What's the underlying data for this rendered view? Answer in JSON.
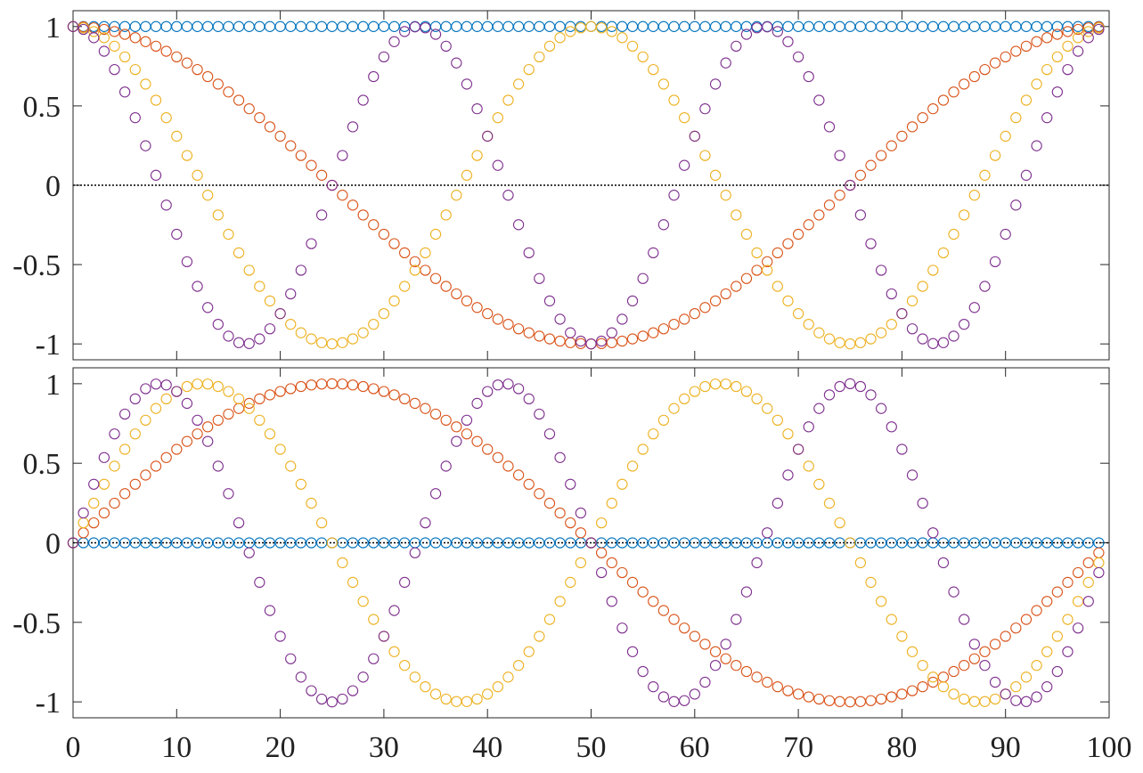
{
  "chart_data": [
    {
      "type": "scatter",
      "title": "",
      "xlabel": "",
      "ylabel": "",
      "xlim": [
        0,
        100
      ],
      "ylim": [
        -1.1,
        1.1
      ],
      "x_ticks": [
        "0",
        "10",
        "20",
        "30",
        "40",
        "50",
        "60",
        "70",
        "80",
        "90",
        "100"
      ],
      "x_tick_labels_shown": false,
      "y_ticks": [
        "-1",
        "-0.5",
        "0",
        "0.5",
        "1"
      ],
      "reference_line": {
        "y": 0,
        "style": "dotted"
      },
      "grid": false,
      "legend": "none",
      "x": "n = 0, 1, …, 99",
      "series": [
        {
          "function": "cos(2π·0·n/100)",
          "color": "#0072BD",
          "marker": "open-circle",
          "values": "1 for all n"
        },
        {
          "function": "cos(2π·1·n/100)",
          "color": "#D95319",
          "marker": "open-circle",
          "values_sample": {
            "0": 1,
            "25": 0,
            "50": -1,
            "75": 0
          }
        },
        {
          "function": "cos(2π·2·n/100)",
          "color": "#EDB120",
          "marker": "open-circle",
          "values_sample": {
            "0": 1,
            "25": -1,
            "50": 1,
            "75": -1
          }
        },
        {
          "function": "cos(2π·3·n/100)",
          "color": "#7E2F8E",
          "marker": "open-circle",
          "values_sample": {
            "0": 1,
            "17": -1,
            "33": 1,
            "50": -1,
            "67": 1,
            "83": -1
          }
        }
      ]
    },
    {
      "type": "scatter",
      "title": "",
      "xlabel": "",
      "ylabel": "",
      "xlim": [
        0,
        100
      ],
      "ylim": [
        -1.1,
        1.1
      ],
      "x_ticks": [
        "0",
        "10",
        "20",
        "30",
        "40",
        "50",
        "60",
        "70",
        "80",
        "90",
        "100"
      ],
      "x_tick_labels_shown": true,
      "y_ticks": [
        "-1",
        "-0.5",
        "0",
        "0.5",
        "1"
      ],
      "reference_line": {
        "y": 0,
        "style": "dotted"
      },
      "grid": false,
      "legend": "none",
      "x": "n = 0, 1, …, 99",
      "series": [
        {
          "function": "sin(2π·0·n/100)",
          "color": "#0072BD",
          "marker": "open-circle",
          "values": "0 for all n"
        },
        {
          "function": "sin(2π·1·n/100)",
          "color": "#D95319",
          "marker": "open-circle",
          "values_sample": {
            "0": 0,
            "25": 1,
            "50": 0,
            "75": -1
          }
        },
        {
          "function": "sin(2π·2·n/100)",
          "color": "#EDB120",
          "marker": "open-circle",
          "values_sample": {
            "0": 0,
            "13": 1,
            "38": -1,
            "63": 1,
            "88": -1
          }
        },
        {
          "function": "sin(2π·3·n/100)",
          "color": "#7E2F8E",
          "marker": "open-circle",
          "values_sample": {
            "0": 0,
            "8": 1,
            "25": -1,
            "42": 1,
            "58": -1,
            "75": 1,
            "92": -1
          }
        }
      ]
    }
  ]
}
